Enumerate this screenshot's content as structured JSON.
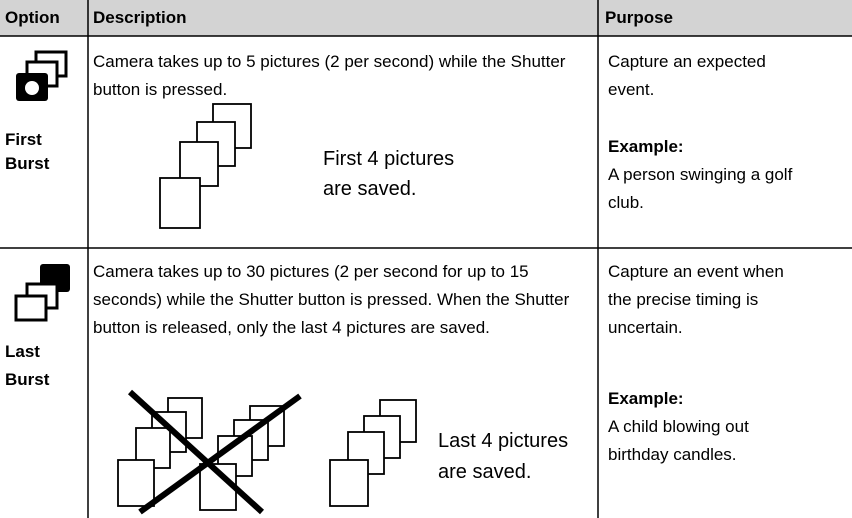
{
  "table": {
    "header": [
      "Option",
      "Description",
      "Purpose"
    ],
    "rows": [
      {
        "option": "First Burst",
        "description": "Camera takes up to 5 pictures (2 per second) while the Shutter button is pressed.",
        "caption": "First 4 pictures are saved.",
        "purpose": "Capture an expected event.",
        "example_label": "Example:",
        "example": "A person swinging a golf club."
      },
      {
        "option": "Last Burst",
        "description": "Camera takes up to 30 pictures (2 per second for up to 15 seconds) while the Shutter button is pressed. When the Shutter button is released, only the last 4 pictures are saved.",
        "caption": "Last 4 pictures are saved.",
        "purpose": "Capture an event when the precise timing is uncertain.",
        "example_label": "Example:",
        "example": "A child blowing out birthday candles."
      }
    ]
  }
}
